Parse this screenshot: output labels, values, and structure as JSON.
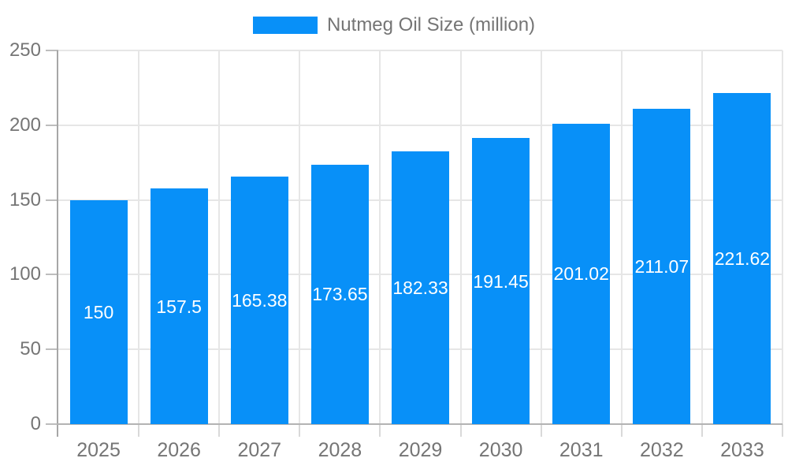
{
  "legend": {
    "label": "Nutmeg Oil Size (million)"
  },
  "chart_data": {
    "type": "bar",
    "title": "Nutmeg Oil Size (million)",
    "categories": [
      "2025",
      "2026",
      "2027",
      "2028",
      "2029",
      "2030",
      "2031",
      "2032",
      "2033"
    ],
    "values": [
      150,
      157.5,
      165.38,
      173.65,
      182.33,
      191.45,
      201.02,
      211.07,
      221.62
    ],
    "value_labels": [
      "150",
      "157.5",
      "165.38",
      "173.65",
      "182.33",
      "191.45",
      "201.02",
      "211.07",
      "221.62"
    ],
    "xlabel": "",
    "ylabel": "",
    "ylim": [
      0,
      250
    ],
    "yticks": [
      0,
      50,
      100,
      150,
      200,
      250
    ],
    "grid": true,
    "legend_position": "top",
    "colors": {
      "bar": "#0890F8",
      "value_label": "#ffffff",
      "axis_text": "#757575",
      "gridline": "#e6e6e6",
      "axis_line": "#a6a6a6"
    }
  }
}
